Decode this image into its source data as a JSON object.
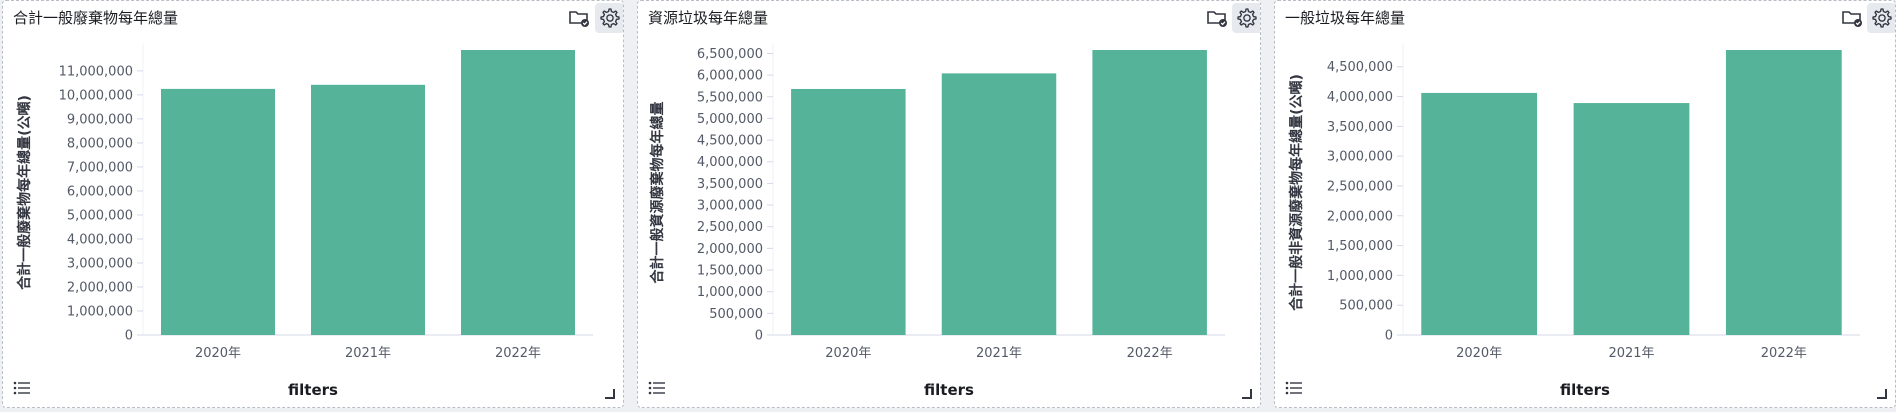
{
  "chart_data": [
    {
      "type": "bar",
      "title": "合計一般廢棄物每年總量",
      "ylabel": "合計一般廢棄物每年總量(公噸)",
      "xlabel": "filters",
      "categories": [
        "2020年",
        "2021年",
        "2022年"
      ],
      "values": [
        10250000,
        10420000,
        11870000
      ],
      "ylim": [
        0,
        11870000
      ],
      "yticks": [
        0,
        1000000,
        2000000,
        3000000,
        4000000,
        5000000,
        6000000,
        7000000,
        8000000,
        9000000,
        10000000,
        11000000
      ],
      "ytick_labels": [
        "0",
        "1,000,000",
        "2,000,000",
        "3,000,000",
        "4,000,000",
        "5,000,000",
        "6,000,000",
        "7,000,000",
        "8,000,000",
        "9,000,000",
        "10,000,000",
        "11,000,000"
      ],
      "bar_color": "#54b399",
      "grid": false
    },
    {
      "type": "bar",
      "title": "資源垃圾每年總量",
      "ylabel": "合計一般資源廢棄物每年總量",
      "xlabel": "filters",
      "categories": [
        "2020年",
        "2021年",
        "2022年"
      ],
      "values": [
        5680000,
        6040000,
        6580000
      ],
      "ylim": [
        0,
        6580000
      ],
      "yticks": [
        0,
        500000,
        1000000,
        1500000,
        2000000,
        2500000,
        3000000,
        3500000,
        4000000,
        4500000,
        5000000,
        5500000,
        6000000,
        6500000
      ],
      "ytick_labels": [
        "0",
        "500,000",
        "1,000,000",
        "1,500,000",
        "2,000,000",
        "2,500,000",
        "3,000,000",
        "3,500,000",
        "4,000,000",
        "4,500,000",
        "5,000,000",
        "5,500,000",
        "6,000,000",
        "6,500,000"
      ],
      "bar_color": "#54b399",
      "grid": false
    },
    {
      "type": "bar",
      "title": "一般垃圾每年總量",
      "ylabel": "合計一般非資源廢棄物每年總量(公噸)",
      "xlabel": "filters",
      "categories": [
        "2020年",
        "2021年",
        "2022年"
      ],
      "values": [
        4060000,
        3890000,
        4780000
      ],
      "ylim": [
        0,
        4780000
      ],
      "yticks": [
        0,
        500000,
        1000000,
        1500000,
        2000000,
        2500000,
        3000000,
        3500000,
        4000000,
        4500000
      ],
      "ytick_labels": [
        "0",
        "500,000",
        "1,000,000",
        "1,500,000",
        "2,000,000",
        "2,500,000",
        "3,000,000",
        "3,500,000",
        "4,000,000",
        "4,500,000"
      ],
      "bar_color": "#54b399",
      "grid": false
    }
  ],
  "icons": {
    "folder": "folder-check-icon",
    "settings": "gear-icon",
    "legend": "list-icon",
    "resize": "resize-handle-icon"
  },
  "colors": {
    "bar": "#54b399",
    "axis": "#d3dae6",
    "text": "#1a1c21"
  }
}
